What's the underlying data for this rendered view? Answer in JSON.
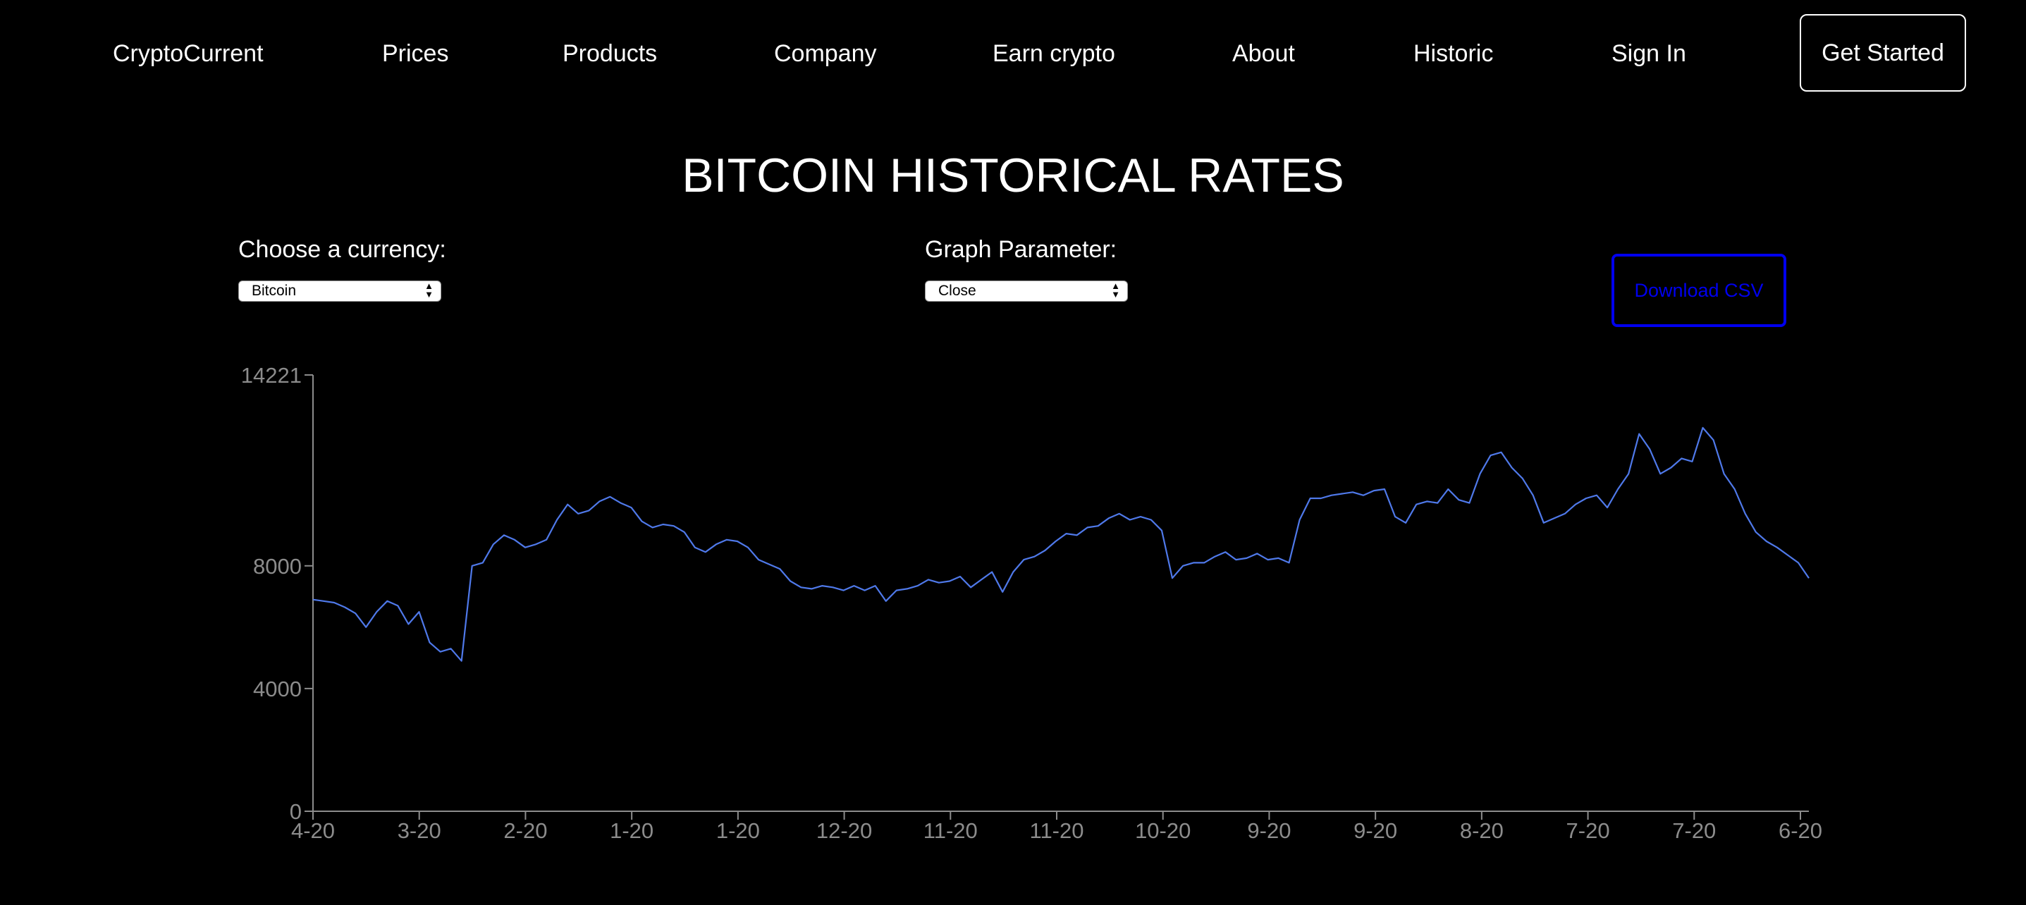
{
  "nav": {
    "brand": "CryptoCurrent",
    "items": [
      "Prices",
      "Products",
      "Company",
      "Earn crypto",
      "About",
      "Historic",
      "Sign In"
    ],
    "cta": "Get Started"
  },
  "page": {
    "title": "BITCOIN HISTORICAL RATES"
  },
  "controls": {
    "currency_label": "Choose a currency:",
    "currency_value": "Bitcoin",
    "parameter_label": "Graph Parameter:",
    "parameter_value": "Close",
    "download_label": "Download CSV"
  },
  "colors": {
    "background": "#000000",
    "text": "#ffffff",
    "line": "#4f79ea",
    "axis": "#8c8c8c",
    "download": "#0000ee"
  },
  "chart_data": {
    "type": "line",
    "y_ticks": [
      0,
      4000,
      8000,
      14221
    ],
    "x_ticks": [
      "4-20",
      "3-20",
      "2-20",
      "1-20",
      "1-20",
      "12-20",
      "11-20",
      "11-20",
      "10-20",
      "9-20",
      "9-20",
      "8-20",
      "7-20",
      "7-20",
      "6-20"
    ],
    "ylim": [
      0,
      14221
    ],
    "series": [
      {
        "values": [
          6900,
          6850,
          6800,
          6650,
          6450,
          6000,
          6500,
          6850,
          6700,
          6100,
          6500,
          5500,
          5200,
          5300,
          4900,
          8000,
          8100,
          8700,
          9000,
          8850,
          8600,
          8700,
          8850,
          9500,
          10000,
          9700,
          9800,
          10100,
          10250,
          10050,
          9900,
          9450,
          9250,
          9350,
          9300,
          9100,
          8600,
          8450,
          8700,
          8850,
          8800,
          8600,
          8200,
          8050,
          7900,
          7500,
          7300,
          7250,
          7350,
          7300,
          7200,
          7350,
          7200,
          7350,
          6850,
          7200,
          7250,
          7350,
          7550,
          7450,
          7500,
          7650,
          7300,
          7550,
          7800,
          7150,
          7800,
          8200,
          8300,
          8500,
          8800,
          9050,
          9000,
          9250,
          9300,
          9550,
          9700,
          9500,
          9600,
          9500,
          9150,
          7600,
          8000,
          8100,
          8100,
          8300,
          8450,
          8200,
          8250,
          8400,
          8200,
          8250,
          8100,
          9500,
          10200,
          10200,
          10300,
          10350,
          10400,
          10300,
          10450,
          10500,
          9600,
          9400,
          10000,
          10100,
          10050,
          10500,
          10150,
          10050,
          11000,
          11600,
          11700,
          11200,
          10850,
          10300,
          9400,
          9550,
          9700,
          10000,
          10200,
          10300,
          9900,
          10500,
          11000,
          12300,
          11800,
          11000,
          11200,
          11500,
          11400,
          12500,
          12100,
          11000,
          10500,
          9700,
          9100,
          8800,
          8600,
          8350,
          8100,
          7600
        ]
      }
    ]
  }
}
